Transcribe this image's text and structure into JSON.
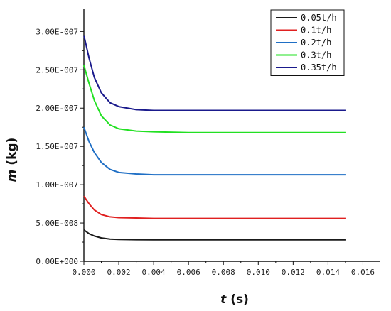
{
  "chart_data": {
    "type": "line",
    "xlabel": {
      "var": "t",
      "unit": " (s)"
    },
    "ylabel": {
      "var": "m",
      "unit": " (kg)"
    },
    "xlim": [
      0,
      0.017
    ],
    "ylim": [
      0,
      3.3e-07
    ],
    "x_ticks": [
      {
        "value": 0.0,
        "label": "0.000"
      },
      {
        "value": 0.002,
        "label": "0.002"
      },
      {
        "value": 0.004,
        "label": "0.004"
      },
      {
        "value": 0.006,
        "label": "0.006"
      },
      {
        "value": 0.008,
        "label": "0.008"
      },
      {
        "value": 0.01,
        "label": "0.010"
      },
      {
        "value": 0.012,
        "label": "0.012"
      },
      {
        "value": 0.014,
        "label": "0.014"
      },
      {
        "value": 0.016,
        "label": "0.016"
      }
    ],
    "y_ticks": [
      {
        "value": 0,
        "label": "0.00E+000"
      },
      {
        "value": 5e-08,
        "label": "5.00E-008"
      },
      {
        "value": 1e-07,
        "label": "1.00E-007"
      },
      {
        "value": 1.5e-07,
        "label": "1.50E-007"
      },
      {
        "value": 2e-07,
        "label": "2.00E-007"
      },
      {
        "value": 2.5e-07,
        "label": "2.50E-007"
      },
      {
        "value": 3e-07,
        "label": "3.00E-007"
      }
    ],
    "legend_position": "top-right",
    "grid": false,
    "series": [
      {
        "name": "0.05t/h",
        "color": "#1a1a1a",
        "x": [
          0,
          0.0003,
          0.0006,
          0.001,
          0.0015,
          0.002,
          0.003,
          0.004,
          0.006,
          0.008,
          0.01,
          0.012,
          0.015
        ],
        "y": [
          4.1e-08,
          3.6e-08,
          3.3e-08,
          3.05e-08,
          2.9e-08,
          2.85e-08,
          2.82e-08,
          2.8e-08,
          2.8e-08,
          2.8e-08,
          2.8e-08,
          2.8e-08,
          2.8e-08
        ]
      },
      {
        "name": "0.1t/h",
        "color": "#e02020",
        "x": [
          0,
          0.0003,
          0.0006,
          0.001,
          0.0015,
          0.002,
          0.003,
          0.004,
          0.006,
          0.008,
          0.01,
          0.012,
          0.015
        ],
        "y": [
          8.5e-08,
          7.5e-08,
          6.7e-08,
          6.1e-08,
          5.8e-08,
          5.7e-08,
          5.65e-08,
          5.6e-08,
          5.6e-08,
          5.6e-08,
          5.6e-08,
          5.6e-08,
          5.6e-08
        ]
      },
      {
        "name": "0.2t/h",
        "color": "#1f6fc5",
        "x": [
          0,
          0.0003,
          0.0006,
          0.001,
          0.0015,
          0.002,
          0.003,
          0.004,
          0.006,
          0.008,
          0.01,
          0.012,
          0.015
        ],
        "y": [
          1.75e-07,
          1.56e-07,
          1.42e-07,
          1.29e-07,
          1.2e-07,
          1.16e-07,
          1.14e-07,
          1.13e-07,
          1.13e-07,
          1.13e-07,
          1.13e-07,
          1.13e-07,
          1.13e-07
        ]
      },
      {
        "name": "0.3t/h",
        "color": "#22e022",
        "x": [
          0,
          0.0003,
          0.0006,
          0.001,
          0.0015,
          0.002,
          0.003,
          0.004,
          0.006,
          0.008,
          0.01,
          0.012,
          0.015
        ],
        "y": [
          2.56e-07,
          2.32e-07,
          2.1e-07,
          1.9e-07,
          1.78e-07,
          1.73e-07,
          1.7e-07,
          1.69e-07,
          1.68e-07,
          1.68e-07,
          1.68e-07,
          1.68e-07,
          1.68e-07
        ]
      },
      {
        "name": "0.35t/h",
        "color": "#1a1a8c",
        "x": [
          0,
          0.0003,
          0.0006,
          0.001,
          0.0015,
          0.002,
          0.003,
          0.004,
          0.006,
          0.008,
          0.01,
          0.012,
          0.015
        ],
        "y": [
          2.95e-07,
          2.65e-07,
          2.4e-07,
          2.2e-07,
          2.07e-07,
          2.02e-07,
          1.98e-07,
          1.97e-07,
          1.97e-07,
          1.97e-07,
          1.97e-07,
          1.97e-07,
          1.97e-07
        ]
      }
    ]
  }
}
